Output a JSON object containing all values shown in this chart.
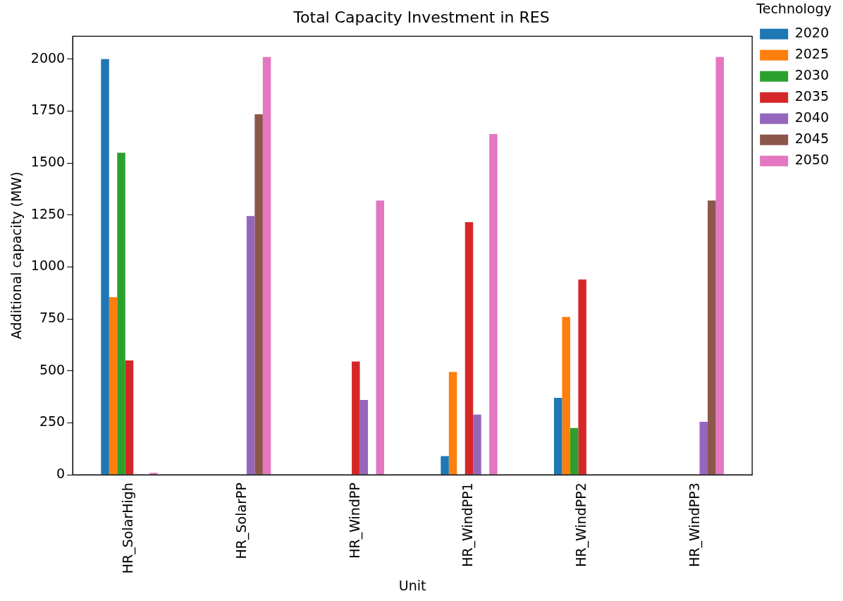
{
  "chart_data": {
    "type": "bar",
    "title": "Total Capacity Investment in RES",
    "xlabel": "Unit",
    "ylabel": "Additional capacity (MW)",
    "legend_title": "Technology",
    "legend": "top right",
    "grid": false,
    "categories": [
      "HR_SolarHigh",
      "HR_SolarPP",
      "HR_WindPP",
      "HR_WindPP1",
      "HR_WindPP2",
      "HR_WindPP3"
    ],
    "ylim": [
      0,
      2110
    ],
    "yticks": [
      0,
      250,
      500,
      750,
      1000,
      1250,
      1500,
      1750,
      2000
    ],
    "series": [
      {
        "name": "2020",
        "color": "#1f77b4",
        "values": [
          2000,
          0,
          0,
          90,
          370,
          0
        ]
      },
      {
        "name": "2025",
        "color": "#ff7f0e",
        "values": [
          855,
          0,
          0,
          495,
          760,
          0
        ]
      },
      {
        "name": "2030",
        "color": "#2ca02c",
        "values": [
          1550,
          0,
          0,
          0,
          225,
          0
        ]
      },
      {
        "name": "2035",
        "color": "#d62728",
        "values": [
          550,
          0,
          545,
          1215,
          940,
          0
        ]
      },
      {
        "name": "2040",
        "color": "#9467bd",
        "values": [
          0,
          1245,
          360,
          290,
          0,
          255
        ]
      },
      {
        "name": "2045",
        "color": "#8c564b",
        "values": [
          0,
          1735,
          0,
          0,
          0,
          1320
        ]
      },
      {
        "name": "2050",
        "color": "#e377c2",
        "values": [
          10,
          2010,
          1320,
          1640,
          0,
          2010
        ]
      }
    ]
  }
}
